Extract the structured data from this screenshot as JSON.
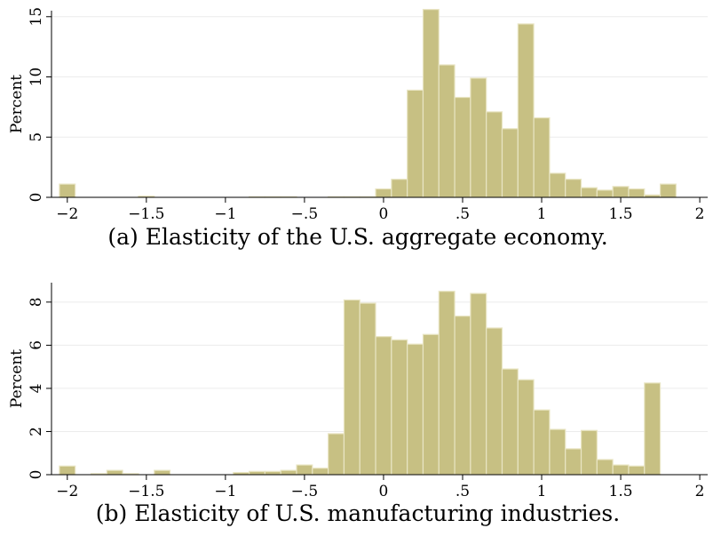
{
  "chart_data": [
    {
      "type": "bar",
      "histogram": true,
      "caption": "(a) Elasticity of the U.S. aggregate economy.",
      "ylabel": "Percent",
      "xlabel": "",
      "xlim": [
        -2.1,
        2.05
      ],
      "ylim": [
        0,
        15.5
      ],
      "xticks": [
        -2,
        -1.5,
        -1,
        -0.5,
        0,
        0.5,
        1,
        1.5,
        2
      ],
      "xtick_labels": [
        "−2",
        "−1.5",
        "−1",
        "−.5",
        "0",
        ".5",
        "1",
        "1.5",
        "2"
      ],
      "yticks": [
        0,
        5,
        10,
        15
      ],
      "ytick_labels": [
        "0",
        "5",
        "10",
        "15"
      ],
      "grid": true,
      "bin_width": 0.1,
      "bin_starts": [
        -2.05,
        -1.95,
        -1.85,
        -1.75,
        -1.65,
        -1.55,
        -1.45,
        -1.35,
        -1.25,
        -1.15,
        -1.05,
        -0.95,
        -0.85,
        -0.75,
        -0.65,
        -0.55,
        -0.45,
        -0.35,
        -0.25,
        -0.15,
        -0.05,
        0.05,
        0.15,
        0.25,
        0.35,
        0.45,
        0.55,
        0.65,
        0.75,
        0.85,
        0.95,
        1.05,
        1.15,
        1.25,
        1.35,
        1.45,
        1.55,
        1.65,
        1.75,
        1.85
      ],
      "values": [
        1.1,
        0,
        0,
        0,
        0,
        0.1,
        0,
        0,
        0,
        0,
        0,
        0,
        0.05,
        0.05,
        0.05,
        0,
        0,
        0.05,
        0.05,
        0.05,
        0.7,
        1.5,
        8.9,
        15.6,
        11.0,
        8.3,
        9.9,
        7.1,
        5.7,
        14.4,
        6.6,
        2.0,
        1.5,
        0.8,
        0.6,
        0.9,
        0.7,
        0.2,
        1.1,
        0
      ]
    },
    {
      "type": "bar",
      "histogram": true,
      "caption": "(b) Elasticity of U.S. manufacturing industries.",
      "ylabel": "Percent",
      "xlabel": "",
      "xlim": [
        -2.1,
        2.05
      ],
      "ylim": [
        0,
        8.9
      ],
      "xticks": [
        -2,
        -1.5,
        -1,
        -0.5,
        0,
        0.5,
        1,
        1.5,
        2
      ],
      "xtick_labels": [
        "−2",
        "−1.5",
        "−1",
        "−.5",
        "0",
        ".5",
        "1",
        "1.5",
        "2"
      ],
      "yticks": [
        0,
        2,
        4,
        6,
        8
      ],
      "ytick_labels": [
        "0",
        "2",
        "4",
        "6",
        "8"
      ],
      "grid": true,
      "bin_width": 0.1,
      "bin_starts": [
        -2.05,
        -1.95,
        -1.85,
        -1.75,
        -1.65,
        -1.55,
        -1.45,
        -1.35,
        -1.25,
        -1.15,
        -1.05,
        -0.95,
        -0.85,
        -0.75,
        -0.65,
        -0.55,
        -0.45,
        -0.35,
        -0.25,
        -0.15,
        -0.05,
        0.05,
        0.15,
        0.25,
        0.35,
        0.45,
        0.55,
        0.65,
        0.75,
        0.85,
        0.95,
        1.05,
        1.15,
        1.25,
        1.35,
        1.45,
        1.55,
        1.65,
        1.75,
        1.85
      ],
      "values": [
        0.4,
        0,
        0.05,
        0.2,
        0.05,
        0,
        0.2,
        0,
        0,
        0,
        0,
        0.1,
        0.15,
        0.15,
        0.2,
        0.45,
        0.3,
        1.9,
        8.1,
        7.95,
        6.4,
        6.25,
        6.05,
        6.5,
        8.5,
        7.35,
        8.4,
        6.8,
        4.9,
        4.4,
        3.0,
        2.1,
        1.2,
        2.05,
        0.7,
        0.45,
        0.4,
        4.25,
        0,
        0
      ]
    }
  ]
}
